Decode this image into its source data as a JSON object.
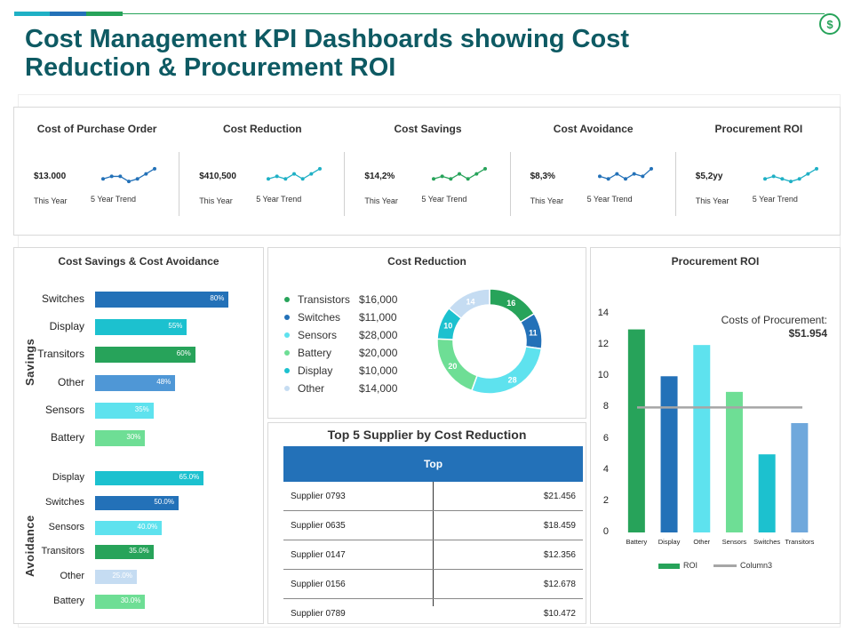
{
  "page": {
    "title": "Cost  Management KPI Dashboards showing Cost Reduction & Procurement ROI",
    "accent_colors": [
      "#1fb0c5",
      "#2371b8",
      "#27a35a"
    ],
    "badge_icon": "dollar-icon",
    "badge_symbol": "$"
  },
  "kpis": [
    {
      "title": "Cost of Purchase Order",
      "value": "$13.000",
      "period_label": "This Year",
      "trend_label": "5 Year Trend",
      "trend": [
        4,
        5,
        5,
        3,
        4,
        6,
        8
      ],
      "color": "#2371b8"
    },
    {
      "title": "Cost Reduction",
      "value": "$410,500",
      "period_label": "This Year",
      "trend_label": "5 Year Trend",
      "trend": [
        4,
        5,
        4,
        6,
        4,
        6,
        8
      ],
      "color": "#1fb0c5"
    },
    {
      "title": "Cost Savings",
      "value": "$14,2%",
      "period_label": "This Year",
      "trend_label": "5 Year Trend",
      "trend": [
        4,
        5,
        4,
        6,
        4,
        6,
        8
      ],
      "color": "#27a35a"
    },
    {
      "title": "Cost Avoidance",
      "value": "$8,3%",
      "period_label": "This Year",
      "trend_label": "5 Year Trend",
      "trend": [
        5,
        4,
        6,
        4,
        6,
        5,
        8
      ],
      "color": "#2371b8"
    },
    {
      "title": "Procurement ROI",
      "value": "$5,2yy",
      "period_label": "This Year",
      "trend_label": "5 Year Trend",
      "trend": [
        4,
        5,
        4,
        3,
        4,
        6,
        8
      ],
      "color": "#1fb0c5"
    }
  ],
  "chart_data": [
    {
      "type": "bar",
      "orientation": "horizontal",
      "title": "Cost Savings & Cost Avoidance",
      "groups": [
        {
          "name": "Savings",
          "categories": [
            "Switches",
            "Display",
            "Transitors",
            "Other",
            "Sensors",
            "Battery"
          ],
          "values": [
            80,
            55,
            60,
            48,
            35,
            30
          ],
          "labels": [
            "80%",
            "55%",
            "60%",
            "48%",
            "35%",
            "30%"
          ],
          "colors": [
            "#2371b8",
            "#1cc1cf",
            "#27a35a",
            "#4f97d6",
            "#5ee2ee",
            "#6ede95"
          ]
        },
        {
          "name": "Avoidance",
          "categories": [
            "Display",
            "Switches",
            "Sensors",
            "Transitors",
            "Other",
            "Battery"
          ],
          "values": [
            65,
            50,
            40,
            35,
            25,
            30
          ],
          "labels": [
            "65.0%",
            "50.0%",
            "40.0%",
            "35.0%",
            "25.0%",
            "30.0%"
          ],
          "colors": [
            "#1cc1cf",
            "#2371b8",
            "#5ee2ee",
            "#27a35a",
            "#c5dcf2",
            "#6ede95"
          ]
        }
      ]
    },
    {
      "type": "pie",
      "variant": "donut",
      "title": "Cost Reduction",
      "categories": [
        "Transistors",
        "Switches",
        "Sensors",
        "Battery",
        "Display",
        "Other"
      ],
      "values": [
        16000,
        11000,
        28000,
        20000,
        10000,
        14000
      ],
      "value_labels": [
        "$16,000",
        "$11,000",
        "$28,000",
        "$20,000",
        "$10,000",
        "$14,000"
      ],
      "slice_labels": [
        "16",
        "11",
        "28",
        "20",
        "10",
        "14"
      ],
      "colors": [
        "#27a35a",
        "#2371b8",
        "#5ee2ee",
        "#6ede95",
        "#1cc1cf",
        "#c5dcf2"
      ]
    },
    {
      "type": "table",
      "title": "Top 5 Supplier by Cost Reduction",
      "header": "Top",
      "rows": [
        [
          "Supplier 0793",
          "$21.456"
        ],
        [
          "Supplier 0635",
          "$18.459"
        ],
        [
          "Supplier 0147",
          "$12.356"
        ],
        [
          "Supplier 0156",
          "$12.678"
        ],
        [
          "Supplier 0789",
          "$10.472"
        ]
      ]
    },
    {
      "type": "bar",
      "title": "Procurement ROI",
      "categories": [
        "Battery",
        "Display",
        "Other",
        "Sensors",
        "Switches",
        "Transitors"
      ],
      "series": [
        {
          "name": "ROI",
          "values": [
            13,
            10,
            12,
            9,
            5,
            7
          ],
          "colors": [
            "#27a35a",
            "#2371b8",
            "#5ee2ee",
            "#6ede95",
            "#1cc1cf",
            "#6fa8dc"
          ]
        },
        {
          "name": "Column3",
          "type": "line",
          "values": [
            8,
            8,
            8,
            8,
            8,
            8
          ],
          "color": "#a6a6a6"
        }
      ],
      "ylim": [
        0,
        14
      ],
      "yticks": [
        0,
        2,
        4,
        6,
        8,
        10,
        12,
        14
      ],
      "annotation": {
        "label": "Costs of Procurement:",
        "value": "$51.954"
      },
      "legend": [
        "ROI",
        "Column3"
      ]
    }
  ]
}
